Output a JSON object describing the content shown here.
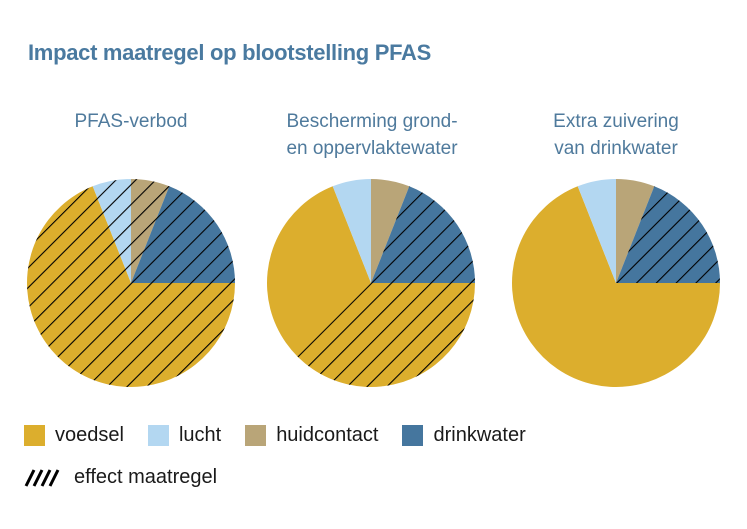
{
  "chart_data": {
    "type": "pie",
    "title": "Impact maatregel op blootstelling PFAS",
    "colors": {
      "voedsel": "#dcae2d",
      "lucht": "#b3d7f1",
      "huidcontact": "#b9a578",
      "drinkwater": "#45769e"
    },
    "slice_order_clockwise_from_top": [
      "huidcontact",
      "drinkwater",
      "voedsel",
      "lucht"
    ],
    "charts": [
      {
        "label": "PFAS-verbod",
        "slices": {
          "huidcontact": 6,
          "drinkwater": 19,
          "voedsel": 69,
          "lucht": 6
        },
        "effect_maatregel": "all slices"
      },
      {
        "label": "Bescherming grond- en oppervlaktewater",
        "slices": {
          "huidcontact": 6,
          "drinkwater": 19,
          "voedsel": 69,
          "lucht": 6
        },
        "effect_maatregel": "drinkwater + part of voedsel (~37.5%)"
      },
      {
        "label": "Extra zuivering van drinkwater",
        "slices": {
          "huidcontact": 6,
          "drinkwater": 19,
          "voedsel": 69,
          "lucht": 6
        },
        "effect_maatregel": "drinkwater only"
      }
    ],
    "legend": [
      "voedsel",
      "lucht",
      "huidcontact",
      "drinkwater",
      "effect maatregel"
    ]
  },
  "title": "Impact maatregel op blootstelling PFAS",
  "subtitles": {
    "c1": "PFAS-verbod",
    "c2a": "Bescherming grond-",
    "c2b": "en oppervlaktewater",
    "c3a": "Extra zuivering",
    "c3b": "van drinkwater"
  },
  "legend": {
    "voedsel": "voedsel",
    "lucht": "lucht",
    "huidcontact": "huidcontact",
    "drinkwater": "drinkwater",
    "effect": "effect maatregel"
  }
}
